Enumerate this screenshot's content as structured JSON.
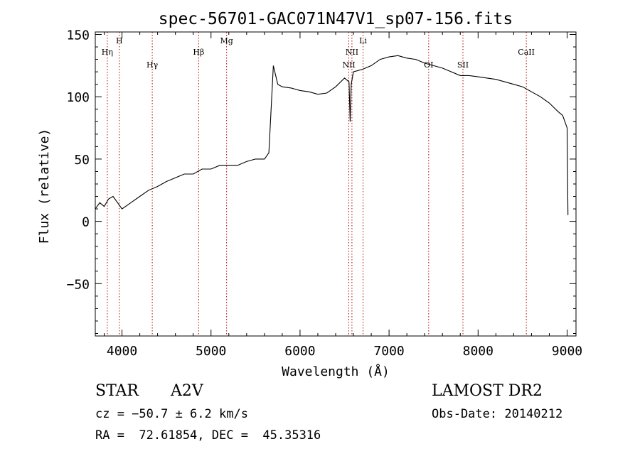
{
  "chart_data": {
    "type": "line",
    "title": "spec-56701-GAC071N47V1_sp07-156.fits",
    "xlabel": "Wavelength (Å)",
    "ylabel": "Flux (relative)",
    "xlim": [
      3700,
      9100
    ],
    "ylim": [
      -92,
      152
    ],
    "xticks": [
      4000,
      5000,
      6000,
      7000,
      8000,
      9000
    ],
    "yticks": [
      -50,
      0,
      50,
      100,
      150
    ],
    "grid": false,
    "legend": "none",
    "line_color": "#000000",
    "marker_color": "#b00000",
    "series": [
      {
        "x": [
          3700,
          3750,
          3800,
          3850,
          3900,
          3950,
          4000,
          4100,
          4200,
          4300,
          4400,
          4500,
          4600,
          4700,
          4800,
          4900,
          5000,
          5100,
          5200,
          5300,
          5400,
          5500,
          5600,
          5650,
          5700,
          5750,
          5800,
          5900,
          6000,
          6100,
          6200,
          6300,
          6400,
          6500,
          6550,
          6563,
          6575,
          6600,
          6700,
          6800,
          6900,
          7000,
          7100,
          7200,
          7300,
          7400,
          7500,
          7600,
          7700,
          7800,
          7900,
          8000,
          8100,
          8200,
          8300,
          8400,
          8500,
          8600,
          8700,
          8800,
          8900,
          8950,
          9000,
          9010
        ],
        "y": [
          10,
          15,
          12,
          18,
          20,
          15,
          10,
          15,
          20,
          25,
          28,
          32,
          35,
          38,
          38,
          42,
          42,
          45,
          45,
          45,
          48,
          50,
          50,
          55,
          125,
          110,
          108,
          107,
          105,
          104,
          102,
          103,
          108,
          115,
          112,
          80,
          110,
          120,
          122,
          125,
          130,
          132,
          133,
          131,
          130,
          127,
          125,
          123,
          120,
          117,
          117,
          116,
          115,
          114,
          112,
          110,
          108,
          104,
          100,
          95,
          88,
          85,
          75,
          5
        ]
      }
    ],
    "line_markers": [
      {
        "label": "Hη",
        "wavelength": 3835,
        "row": "low"
      },
      {
        "label": "H",
        "wavelength": 3970,
        "row": "high"
      },
      {
        "label": "Hγ",
        "wavelength": 4340,
        "row": "mid"
      },
      {
        "label": "Hβ",
        "wavelength": 4861,
        "row": "low"
      },
      {
        "label": "Mg",
        "wavelength": 5175,
        "row": "high"
      },
      {
        "label": "NII",
        "wavelength": 6548,
        "row": "mid"
      },
      {
        "label": "NII",
        "wavelength": 6583,
        "row": "low"
      },
      {
        "label": "Li",
        "wavelength": 6708,
        "row": "high"
      },
      {
        "label": "OI",
        "wavelength": 7445,
        "row": "mid"
      },
      {
        "label": "SII",
        "wavelength": 7830,
        "row": "mid"
      },
      {
        "label": "CaII",
        "wavelength": 8542,
        "row": "low"
      }
    ]
  },
  "info": {
    "class": "STAR",
    "subclass": "A2V",
    "survey": "LAMOST DR2",
    "cz": "cz = −50.7 ± 6.2 km/s",
    "obs_date": "Obs-Date: 20140212",
    "coords": "RA =  72.61854, DEC =  45.35316"
  }
}
